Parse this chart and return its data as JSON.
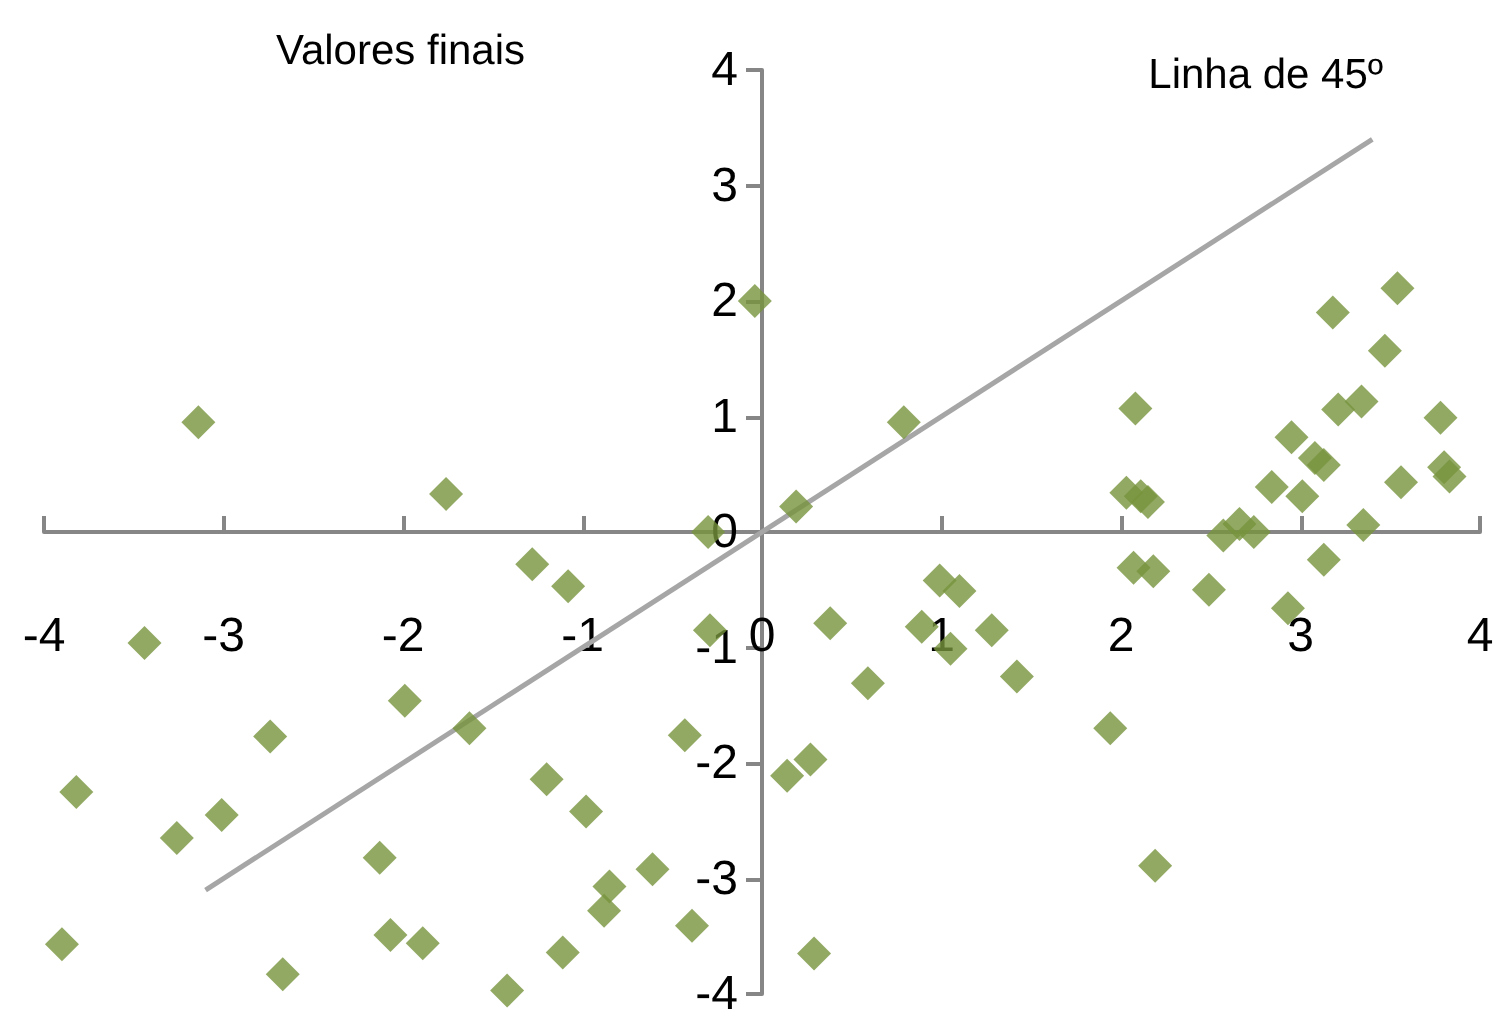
{
  "chart_data": {
    "type": "scatter",
    "ylabel": "Valores finais",
    "xlim": [
      -4,
      4
    ],
    "ylim": [
      -4,
      4
    ],
    "xticks": [
      -4,
      -3,
      -2,
      -1,
      0,
      1,
      2,
      3,
      4
    ],
    "yticks": [
      -4,
      -3,
      -2,
      -1,
      0,
      1,
      2,
      3,
      4
    ],
    "grid": false,
    "series": [
      {
        "color": "#77933c",
        "marker": "diamond",
        "x": [
          -3.14,
          -1.76,
          -0.3,
          -1.28,
          -1.08,
          -3.44,
          -0.29,
          -1.99,
          -2.74,
          -1.63,
          -0.43,
          -3.82,
          -1.2,
          -3.01,
          -3.26,
          -0.98,
          -2.13,
          -0.61,
          -0.85,
          -0.88,
          -0.39,
          -3.9,
          -2.07,
          -1.89,
          -1.11,
          -2.67,
          -1.42,
          -0.04,
          0.79,
          0.19,
          2.08,
          2.03,
          2.11,
          2.15,
          3.18,
          3.54,
          3.47,
          3.21,
          3.34,
          3.78,
          2.95,
          3.08,
          3.13,
          2.84,
          3.01,
          3.56,
          3.8,
          3.83,
          2.57,
          2.66,
          2.74,
          3.35,
          3.13,
          2.07,
          2.18,
          2.49,
          2.93,
          0.99,
          1.1,
          0.38,
          0.89,
          1.05,
          1.28,
          1.42,
          0.59,
          1.94,
          0.27,
          0.14,
          2.19,
          0.29
        ],
        "values": [
          0.95,
          0.33,
          0,
          -0.28,
          -0.47,
          -0.96,
          -0.85,
          -1.46,
          -1.77,
          -1.7,
          -1.76,
          -2.25,
          -2.14,
          -2.45,
          -2.65,
          -2.42,
          -2.82,
          -2.92,
          -3.07,
          -3.28,
          -3.41,
          -3.57,
          -3.49,
          -3.56,
          -3.64,
          -3.83,
          -3.97,
          2,
          0.95,
          0.22,
          1.07,
          0.34,
          0.31,
          0.26,
          1.9,
          2.11,
          1.57,
          1.06,
          1.13,
          0.99,
          0.82,
          0.64,
          0.58,
          0.39,
          0.31,
          0.43,
          0.56,
          0.48,
          -0.03,
          0.07,
          0,
          0.06,
          -0.24,
          -0.31,
          -0.34,
          -0.5,
          -0.66,
          -0.42,
          -0.51,
          -0.79,
          -0.82,
          -1.01,
          -0.85,
          -1.25,
          -1.31,
          -1.7,
          -1.97,
          -2.11,
          -2.89,
          -3.65
        ]
      },
      {
        "type": "line",
        "name": "Linha de 45º",
        "color": "#a6a6a6",
        "marker": "none",
        "x": [
          -3.1,
          3.4
        ],
        "values": [
          -3.1,
          3.4
        ]
      }
    ]
  }
}
